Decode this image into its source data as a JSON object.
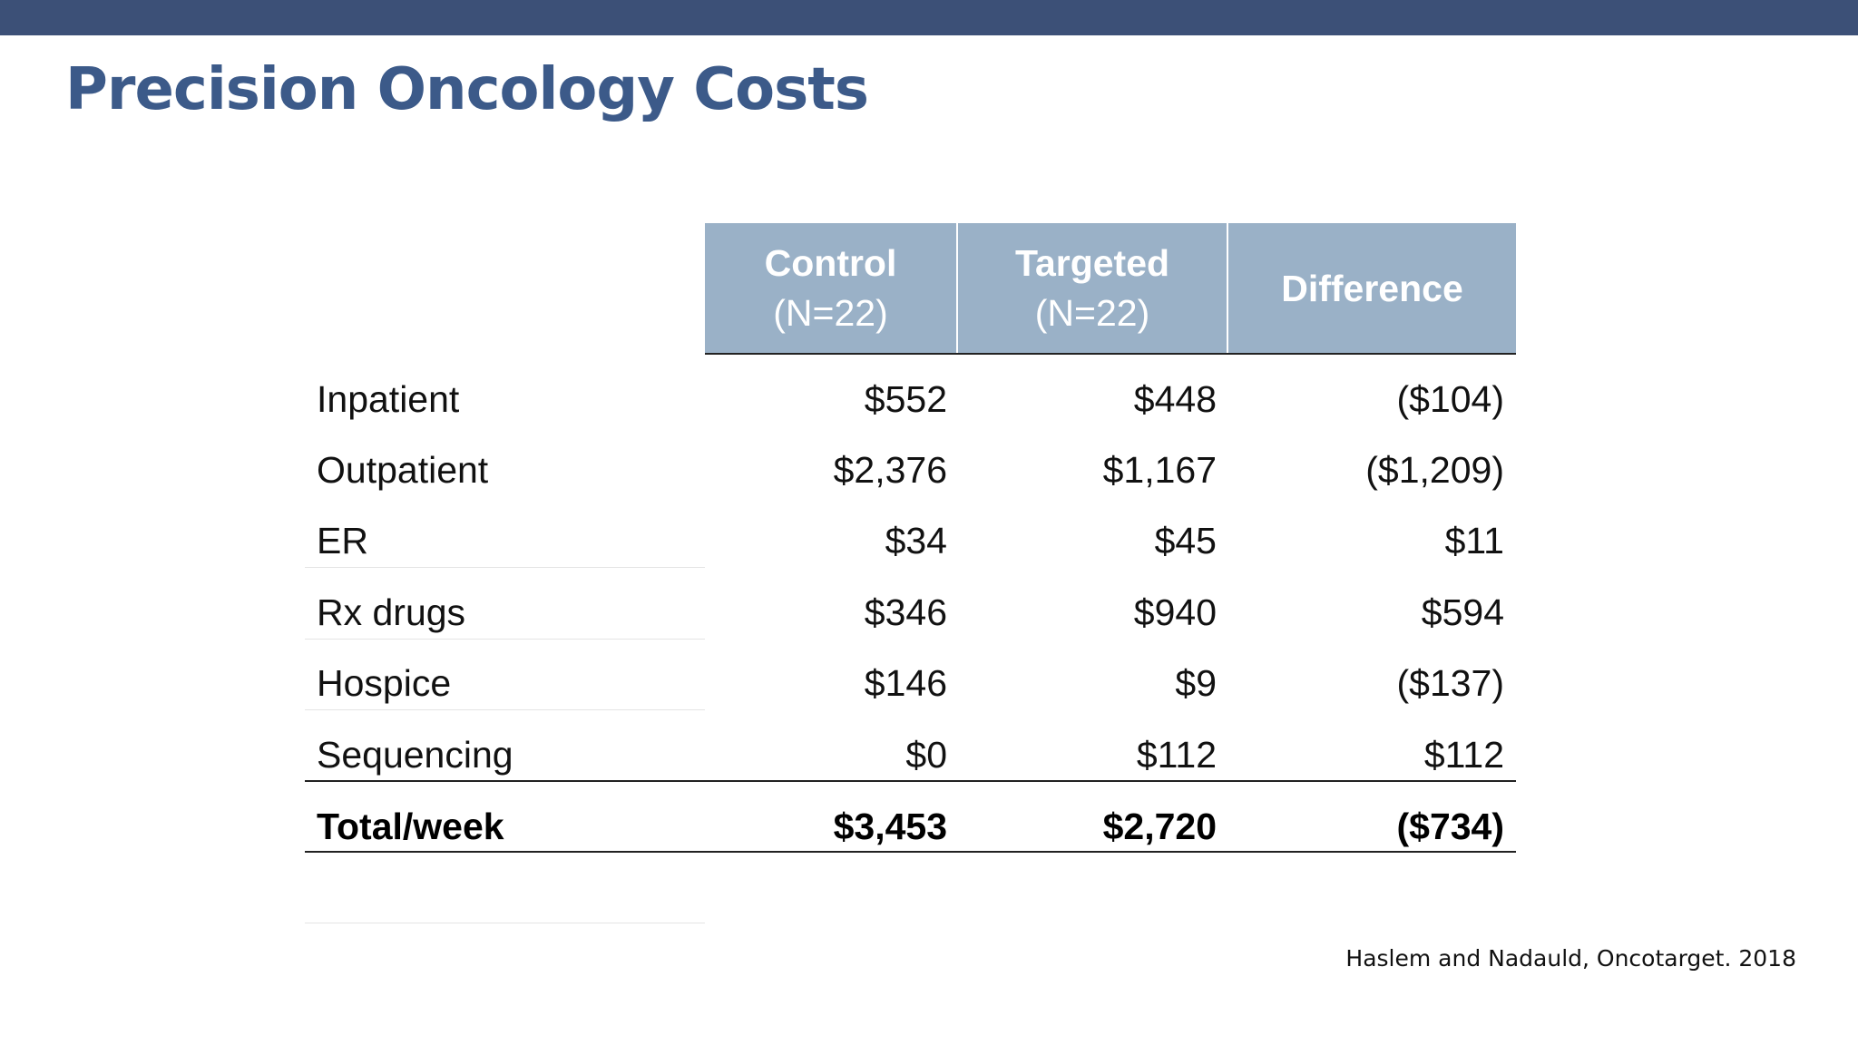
{
  "slide": {
    "title": "Precision Oncology Costs",
    "citation": "Haslem and Nadauld, Oncotarget. 2018"
  },
  "table": {
    "columns": [
      {
        "name": "Control",
        "sub": "(N=22)"
      },
      {
        "name": "Targeted",
        "sub": "(N=22)"
      },
      {
        "name": "Difference",
        "sub": ""
      }
    ],
    "rows": [
      {
        "label": "Inpatient",
        "control": "$552",
        "targeted": "$448",
        "difference": "($104)"
      },
      {
        "label": "Outpatient",
        "control": "$2,376",
        "targeted": "$1,167",
        "difference": "($1,209)"
      },
      {
        "label": "ER",
        "control": "$34",
        "targeted": "$45",
        "difference": "$11"
      },
      {
        "label": "Rx drugs",
        "control": "$346",
        "targeted": "$940",
        "difference": "$594"
      },
      {
        "label": "Hospice",
        "control": "$146",
        "targeted": "$9",
        "difference": "($137)"
      },
      {
        "label": "Sequencing",
        "control": "$0",
        "targeted": "$112",
        "difference": "$112"
      }
    ],
    "total": {
      "label": "Total/week",
      "control": "$3,453",
      "targeted": "$2,720",
      "difference": "($734)"
    }
  },
  "colors": {
    "top_bar": "#3c5077",
    "title": "#3c5a89",
    "header_fill": "#9ab1c7"
  }
}
